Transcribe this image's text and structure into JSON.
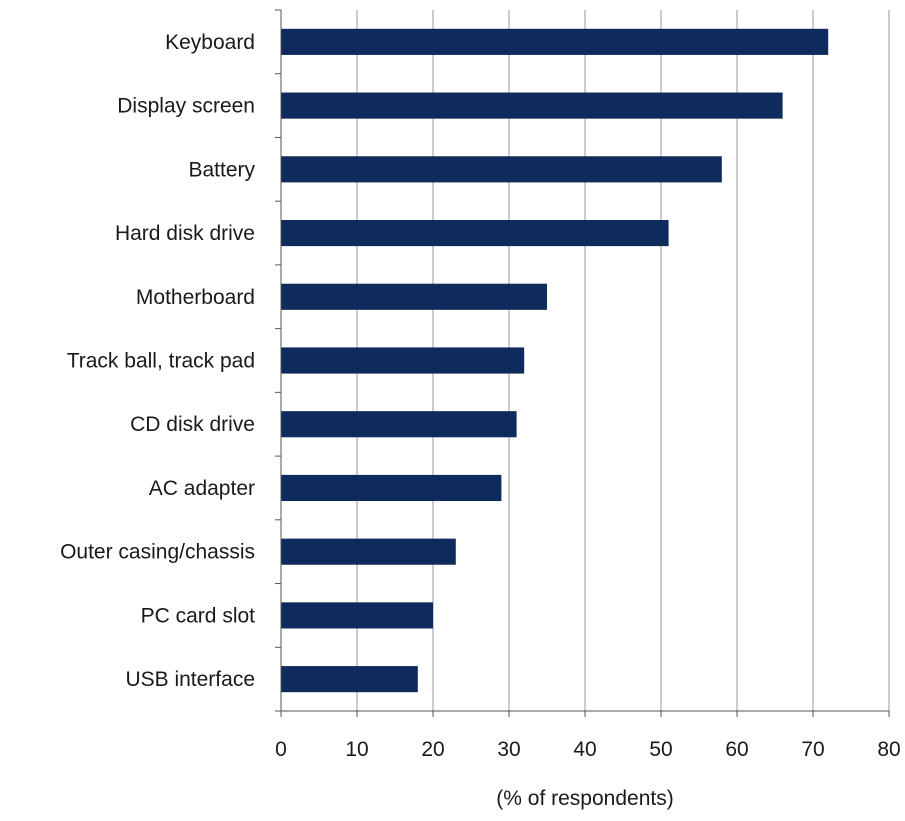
{
  "chart_data": {
    "type": "bar",
    "orientation": "horizontal",
    "categories": [
      "Keyboard",
      "Display screen",
      "Battery",
      "Hard disk drive",
      "Motherboard",
      "Track ball, track pad",
      "CD disk drive",
      "AC adapter",
      "Outer casing/chassis",
      "PC card slot",
      "USB interface"
    ],
    "values": [
      72,
      66,
      58,
      51,
      35,
      32,
      31,
      29,
      23,
      20,
      18
    ],
    "title": "",
    "xlabel": "(% of respondents)",
    "ylabel": "",
    "xlim": [
      0,
      80
    ],
    "xticks": [
      "0",
      "10",
      "20",
      "30",
      "40",
      "50",
      "60",
      "70",
      "80"
    ],
    "grid": "vertical",
    "legend": "none",
    "bar_color": "#0f2a5c",
    "grid_color": "#9a9a9a"
  }
}
